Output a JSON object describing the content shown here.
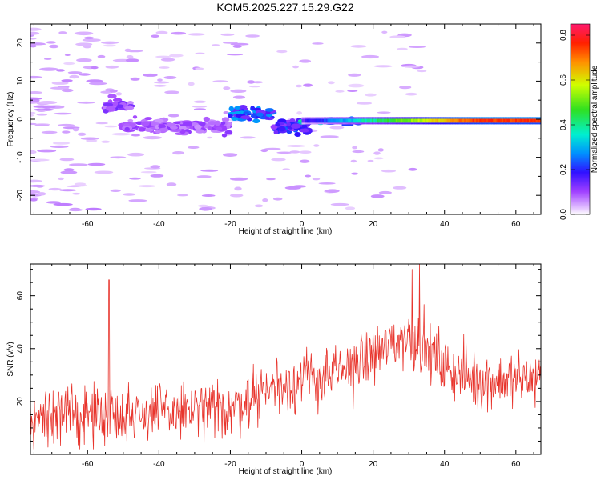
{
  "title": "KOM5.2025.227.15.29.G22",
  "colors": {
    "snr_line": "#e8342c",
    "axis": "#000000"
  },
  "chart_data": [
    {
      "type": "heatmap",
      "name": "spectrogram",
      "xlabel": "Height of straight line (km)",
      "ylabel": "Frequency (Hz)",
      "xlim": [
        -76,
        67
      ],
      "ylim": [
        -25,
        25
      ],
      "xticks": [
        -60,
        -40,
        -20,
        0,
        20,
        40,
        60
      ],
      "yticks": [
        -20,
        -10,
        0,
        10,
        20
      ],
      "colorbar": {
        "label": "Normalized spectral amplitude",
        "range": [
          0,
          0.85
        ],
        "ticks": [
          "0.0",
          "0.2",
          "0.4",
          "0.6",
          "0.8"
        ],
        "tick_values": [
          0,
          0.2,
          0.4,
          0.6,
          0.8
        ]
      },
      "features": [
        {
          "desc": "main line near 0 Hz",
          "x_start": 0,
          "x_end": 67,
          "freq": -0.5,
          "amplitude": 0.75
        },
        {
          "desc": "patch",
          "x_start": -55,
          "x_end": -48,
          "freq": 3.5,
          "amplitude": 0.12
        },
        {
          "desc": "patch",
          "x_start": -50,
          "x_end": -20,
          "freq": -2,
          "amplitude": 0.1
        },
        {
          "desc": "patch",
          "x_start": -20,
          "x_end": -8,
          "freq": 1.5,
          "amplitude": 0.25
        },
        {
          "desc": "patch",
          "x_start": -8,
          "x_end": 2,
          "freq": -2,
          "amplitude": 0.2
        }
      ]
    },
    {
      "type": "line",
      "name": "snr",
      "xlabel": "Height of straight line (km)",
      "ylabel": "SNR (v/v)",
      "xlim": [
        -76,
        67
      ],
      "ylim": [
        0,
        72
      ],
      "xticks": [
        -60,
        -40,
        -20,
        0,
        20,
        40,
        60
      ],
      "yticks": [
        20,
        40,
        60
      ],
      "series": [
        {
          "name": "SNR",
          "trend": {
            "x": [
              -76,
              -60,
              -40,
              -20,
              -10,
              0,
              10,
              20,
              30,
              35,
              40,
              50,
              60,
              67
            ],
            "y": [
              14,
              15,
              16,
              17,
              25,
              28,
              30,
              38,
              45,
              40,
              33,
              28,
              28,
              30
            ]
          },
          "spread": 10,
          "spikes": [
            {
              "x": -54,
              "y": 66
            },
            {
              "x": 31,
              "y": 70
            },
            {
              "x": 33,
              "y": 72
            }
          ]
        }
      ]
    }
  ]
}
